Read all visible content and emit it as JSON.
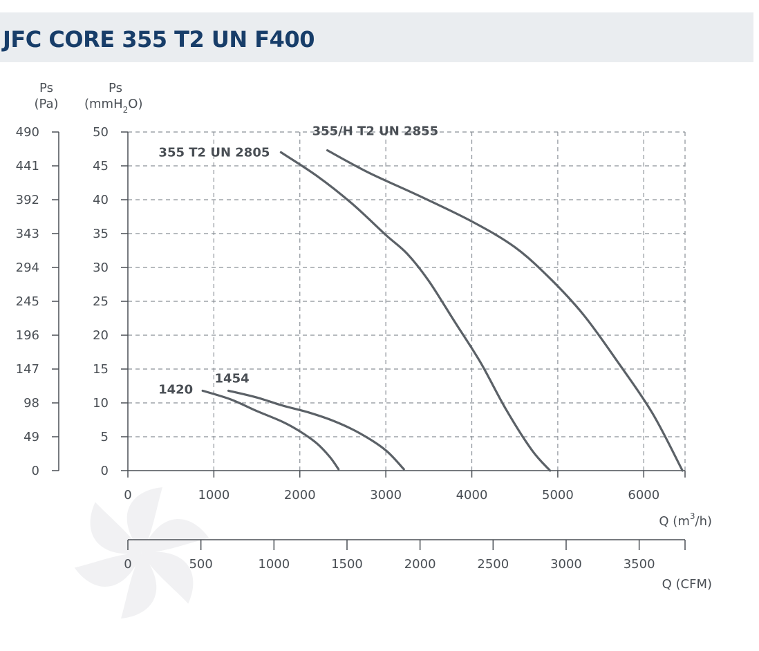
{
  "title": "JFC CORE 355 T2 UN F400",
  "chart_data": {
    "type": "line",
    "y_left_pa": {
      "label_top": "Ps",
      "label_bottom": "(Pa)",
      "ticks": [
        "490",
        "441",
        "392",
        "343",
        "294",
        "245",
        "196",
        "147",
        "98",
        "49",
        "0"
      ]
    },
    "y_right_mmh2o": {
      "label_top": "Ps",
      "label_bottom_pre": "(mmH",
      "label_bottom_sub": "2",
      "label_bottom_post": "O)",
      "ylim": [
        0,
        50
      ],
      "ticks": [
        50,
        45,
        40,
        35,
        30,
        25,
        20,
        15,
        10,
        5,
        0
      ]
    },
    "x_m3h": {
      "label_pre": "Q (m",
      "label_sup": "3",
      "label_post": "/h)",
      "xlim": [
        0,
        6480
      ],
      "ticks": [
        0,
        1000,
        2000,
        3000,
        4000,
        5000,
        6000
      ]
    },
    "x_cfm": {
      "label": "Q (CFM)",
      "xlim": [
        0,
        3814
      ],
      "ticks": [
        0,
        500,
        1000,
        1500,
        2000,
        2500,
        3000,
        3500
      ]
    },
    "grid": "dashed",
    "series": [
      {
        "name": "355 T2 UN 2805",
        "points": [
          [
            1780,
            47
          ],
          [
            2200,
            43.5
          ],
          [
            2600,
            39.5
          ],
          [
            3000,
            34.8
          ],
          [
            3250,
            32
          ],
          [
            3500,
            28
          ],
          [
            3800,
            22
          ],
          [
            4100,
            16
          ],
          [
            4400,
            9
          ],
          [
            4700,
            3
          ],
          [
            4910,
            0
          ]
        ]
      },
      {
        "name": "355/H T2 UN 2855",
        "points": [
          [
            2320,
            47.3
          ],
          [
            2800,
            44
          ],
          [
            3400,
            40.5
          ],
          [
            4000,
            36.8
          ],
          [
            4500,
            33
          ],
          [
            4900,
            28.5
          ],
          [
            5300,
            23
          ],
          [
            5700,
            16
          ],
          [
            6100,
            8.5
          ],
          [
            6450,
            0
          ]
        ]
      },
      {
        "name": "1420",
        "points": [
          [
            870,
            11.8
          ],
          [
            1200,
            10.5
          ],
          [
            1500,
            8.8
          ],
          [
            1800,
            7.2
          ],
          [
            2000,
            5.8
          ],
          [
            2200,
            4
          ],
          [
            2350,
            2
          ],
          [
            2450,
            0.2
          ]
        ]
      },
      {
        "name": "1454",
        "points": [
          [
            1170,
            11.8
          ],
          [
            1500,
            10.8
          ],
          [
            1800,
            9.6
          ],
          [
            2100,
            8.6
          ],
          [
            2400,
            7.3
          ],
          [
            2700,
            5.5
          ],
          [
            3000,
            3
          ],
          [
            3210,
            0.2
          ]
        ]
      }
    ]
  }
}
